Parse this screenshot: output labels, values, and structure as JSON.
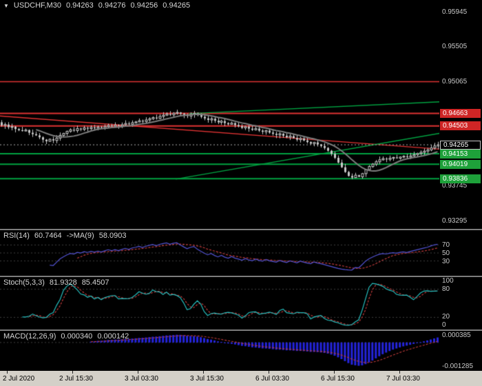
{
  "colors": {
    "background": "#000000",
    "axis_text": "#c8c8c8",
    "resistance": "#e03232",
    "support": "#00a341",
    "candle": "#c8c8c8",
    "ma_line": "#7d7d7d",
    "rsi_line": "#5252d2",
    "signal_line": "#c03a3a",
    "stoch_line": "#25c0c0",
    "macd_hist": "#2424dd",
    "guide": "#3f3f3f",
    "current_price_line": "#b0b0b0"
  },
  "symbol_bar": {
    "dropdown_icon": "▼",
    "symbol": "USDCHF,M30",
    "open": "0.94263",
    "high": "0.94276",
    "low": "0.94256",
    "close": "0.94265"
  },
  "main_chart": {
    "y_axis_labels": [
      "0.95945",
      "0.95505",
      "0.95065",
      "0.93745",
      "0.93295"
    ],
    "price_boxes": [
      {
        "value": "0.94663",
        "kind": "resistance"
      },
      {
        "value": "0.94503",
        "kind": "resistance"
      },
      {
        "value": "0.94265",
        "kind": "current"
      },
      {
        "value": "0.94153",
        "kind": "support"
      },
      {
        "value": "0.94019",
        "kind": "support"
      },
      {
        "value": "0.93836",
        "kind": "support"
      }
    ]
  },
  "rsi_panel": {
    "label": "RSI(14)",
    "value": "60.7464",
    "ma_label": "->MA(9)",
    "ma_value": "58.0903",
    "y_axis_labels": [
      "70",
      "50",
      "30"
    ]
  },
  "stoch_panel": {
    "label": "Stoch(5,3,3)",
    "value": "81.9328",
    "signal_value": "85.4507",
    "y_axis_labels": [
      "100",
      "80",
      "20",
      "0"
    ]
  },
  "macd_panel": {
    "label": "MACD(12,26,9)",
    "value": "0.000340",
    "signal_value": "0.000142",
    "y_axis_labels": [
      "0.000385",
      "-0.001285"
    ]
  },
  "time_axis": {
    "labels": [
      "2 Jul 2020",
      "2 Jul 15:30",
      "3 Jul 03:30",
      "3 Jul 15:30",
      "6 Jul 03:30",
      "6 Jul 15:30",
      "7 Jul 03:30"
    ]
  },
  "chart_data": [
    {
      "type": "candlestick",
      "title": "USDCHF M30",
      "x_labels": [
        "2 Jul 2020",
        "2 Jul 15:30",
        "3 Jul 03:30",
        "3 Jul 15:30",
        "6 Jul 03:30",
        "6 Jul 15:30",
        "7 Jul 03:30"
      ],
      "y_range": [
        0.932,
        0.961
      ],
      "closes": [
        0.9451,
        0.94522,
        0.94488,
        0.94495,
        0.94465,
        0.9445,
        0.9444,
        0.94452,
        0.94418,
        0.944,
        0.94385,
        0.9436,
        0.9433,
        0.9431,
        0.94335,
        0.9432,
        0.9435,
        0.94385,
        0.9441,
        0.94435,
        0.94455,
        0.94445,
        0.9447,
        0.9446,
        0.9448,
        0.9447,
        0.94485,
        0.94475,
        0.9449,
        0.9448,
        0.94495,
        0.9451,
        0.945,
        0.94515,
        0.94505,
        0.9452,
        0.94535,
        0.94525,
        0.94545,
        0.94555,
        0.9457,
        0.9456,
        0.9458,
        0.94595,
        0.9461,
        0.946,
        0.94625,
        0.9464,
        0.94655,
        0.94645,
        0.94665,
        0.94675,
        0.9466,
        0.94645,
        0.9463,
        0.9465,
        0.94662,
        0.9464,
        0.9462,
        0.946,
        0.9458,
        0.94595,
        0.9457,
        0.9455,
        0.94565,
        0.9454,
        0.94525,
        0.9454,
        0.94515,
        0.945,
        0.9448,
        0.94495,
        0.9447,
        0.94455,
        0.9447,
        0.94445,
        0.9443,
        0.94445,
        0.9442,
        0.94405,
        0.9439,
        0.94405,
        0.9438,
        0.9436,
        0.94375,
        0.9435,
        0.9433,
        0.94345,
        0.9432,
        0.943,
        0.9428,
        0.94295,
        0.9427,
        0.9425,
        0.94225,
        0.9419,
        0.9415,
        0.941,
        0.9404,
        0.9398,
        0.9392,
        0.9387,
        0.9385,
        0.9388,
        0.9386,
        0.939,
        0.9395,
        0.9399,
        0.9402,
        0.9405,
        0.94075,
        0.9409,
        0.9408,
        0.94095,
        0.94105,
        0.94095,
        0.9411,
        0.9412,
        0.9411,
        0.94125,
        0.9414,
        0.94155,
        0.9417,
        0.94185,
        0.942,
        0.94225,
        0.9425,
        0.94265
      ],
      "overlays": {
        "ma_line": {
          "period": 11
        },
        "current_price": 0.94265,
        "horizontal_levels": [
          {
            "price": 0.95065,
            "role": "resistance",
            "width": 1.5
          },
          {
            "price": 0.94663,
            "role": "resistance",
            "width": 2
          },
          {
            "price": 0.94503,
            "role": "resistance",
            "width": 2
          },
          {
            "price": 0.94153,
            "role": "support",
            "width": 2
          },
          {
            "price": 0.94019,
            "role": "support",
            "width": 2
          },
          {
            "price": 0.93836,
            "role": "support",
            "width": 2
          }
        ],
        "trendlines": [
          {
            "x0_frac": 0.0,
            "p0": 0.9463,
            "x1_frac": 1.0,
            "p1": 0.9421,
            "role": "resistance"
          },
          {
            "x0_frac": 0.4,
            "p0": 0.9383,
            "x1_frac": 1.0,
            "p1": 0.9441,
            "role": "support"
          },
          {
            "x0_frac": 0.43,
            "p0": 0.9466,
            "x1_frac": 1.0,
            "p1": 0.9481,
            "role": "support"
          }
        ]
      }
    },
    {
      "type": "line",
      "name": "RSI",
      "params": [
        14,
        9
      ],
      "current": 60.7464,
      "ma_current": 58.0903,
      "range": [
        0,
        100
      ],
      "guides": [
        70,
        50,
        30
      ]
    },
    {
      "type": "line",
      "name": "Stochastic",
      "params": [
        5,
        3,
        3
      ],
      "current_k": 81.9328,
      "current_d": 85.4507,
      "range": [
        0,
        100
      ],
      "guides": [
        80,
        20
      ]
    },
    {
      "type": "bar",
      "name": "MACD",
      "params": [
        12,
        26,
        9
      ],
      "current_macd": 0.00034,
      "current_signal": 0.000142,
      "range": [
        -0.001285,
        0.000385
      ]
    }
  ]
}
